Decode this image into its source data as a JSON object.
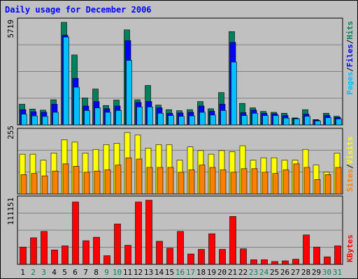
{
  "title": "Daily usage for December 2006",
  "colors": {
    "background": "#c0c0c0",
    "plot_background": "#c0c0c0",
    "hits": "#00805c",
    "files": "#0000ff",
    "pages": "#00c0ff",
    "visits": "#ffff00",
    "sites": "#ff8000",
    "kbytes": "#ff0000",
    "weekday_label": "#000000",
    "weekend_label": "#00805c"
  },
  "chart_data": [
    {
      "type": "bar",
      "name": "hits-files-pages",
      "y_max_label": "5719",
      "ylim": [
        0,
        5719
      ],
      "categories": [
        "1",
        "2",
        "3",
        "4",
        "5",
        "6",
        "7",
        "8",
        "9",
        "10",
        "11",
        "12",
        "13",
        "14",
        "15",
        "16",
        "17",
        "18",
        "19",
        "20",
        "21",
        "22",
        "23",
        "24",
        "25",
        "26",
        "27",
        "28",
        "29",
        "30",
        "31"
      ],
      "legend": [
        "Pages",
        "Files",
        "Hits"
      ],
      "series": [
        {
          "name": "Hits",
          "values": [
            1150,
            880,
            820,
            1400,
            5719,
            3900,
            1500,
            2000,
            1080,
            1380,
            5300,
            1400,
            2200,
            1100,
            850,
            790,
            850,
            1300,
            900,
            1800,
            5200,
            1200,
            950,
            750,
            700,
            650,
            390,
            850,
            300,
            650,
            480
          ]
        },
        {
          "name": "Files",
          "values": [
            850,
            730,
            700,
            1150,
            5000,
            2600,
            1050,
            1300,
            900,
            1050,
            4700,
            1250,
            1300,
            950,
            650,
            660,
            700,
            1050,
            760,
            1150,
            4600,
            680,
            820,
            650,
            620,
            520,
            360,
            600,
            260,
            520,
            420
          ]
        },
        {
          "name": "Pages",
          "values": [
            600,
            500,
            470,
            700,
            4900,
            2100,
            800,
            950,
            700,
            800,
            3600,
            1000,
            1000,
            650,
            520,
            480,
            500,
            700,
            550,
            800,
            3500,
            520,
            650,
            520,
            520,
            380,
            340,
            480,
            220,
            400,
            330
          ]
        }
      ]
    },
    {
      "type": "bar",
      "name": "visits-sites",
      "y_max_label": "255",
      "ylim": [
        0,
        255
      ],
      "categories": [
        "1",
        "2",
        "3",
        "4",
        "5",
        "6",
        "7",
        "8",
        "9",
        "10",
        "11",
        "12",
        "13",
        "14",
        "15",
        "16",
        "17",
        "18",
        "19",
        "20",
        "21",
        "22",
        "23",
        "24",
        "25",
        "26",
        "27",
        "28",
        "29",
        "30",
        "31"
      ],
      "legend": [
        "Sites",
        "Visits"
      ],
      "series": [
        {
          "name": "Visits",
          "values": [
            165,
            165,
            140,
            170,
            225,
            215,
            170,
            185,
            205,
            210,
            255,
            245,
            190,
            205,
            205,
            140,
            195,
            180,
            165,
            180,
            175,
            200,
            140,
            150,
            150,
            140,
            140,
            185,
            120,
            90,
            170
          ]
        },
        {
          "name": "Sites",
          "values": [
            80,
            85,
            75,
            95,
            125,
            115,
            90,
            95,
            100,
            120,
            150,
            145,
            110,
            110,
            110,
            90,
            100,
            120,
            110,
            100,
            90,
            105,
            105,
            90,
            85,
            100,
            125,
            110,
            60,
            80,
            110
          ]
        }
      ]
    },
    {
      "type": "bar",
      "name": "kbytes",
      "y_max_label": "111151",
      "ylim": [
        0,
        111151
      ],
      "categories": [
        "1",
        "2",
        "3",
        "4",
        "5",
        "6",
        "7",
        "8",
        "9",
        "10",
        "11",
        "12",
        "13",
        "14",
        "15",
        "16",
        "17",
        "18",
        "19",
        "20",
        "21",
        "22",
        "23",
        "24",
        "25",
        "26",
        "27",
        "28",
        "29",
        "30",
        "31"
      ],
      "legend": [
        "KBytes"
      ],
      "series": [
        {
          "name": "KBytes",
          "values": [
            30000,
            46000,
            57000,
            25000,
            32000,
            108000,
            41000,
            47000,
            15000,
            70000,
            33000,
            108000,
            111151,
            40000,
            28000,
            57000,
            18000,
            26000,
            53000,
            26000,
            83000,
            27000,
            8000,
            8000,
            5000,
            6000,
            9000,
            51000,
            30000,
            13000,
            32000
          ]
        }
      ]
    }
  ],
  "days": [
    "1",
    "2",
    "3",
    "4",
    "5",
    "6",
    "7",
    "8",
    "9",
    "10",
    "11",
    "12",
    "13",
    "14",
    "15",
    "16",
    "17",
    "18",
    "19",
    "20",
    "21",
    "22",
    "23",
    "24",
    "25",
    "26",
    "27",
    "28",
    "29",
    "30",
    "31"
  ],
  "weekend_days": [
    2,
    3,
    9,
    10,
    16,
    17,
    23,
    24,
    30,
    31
  ]
}
